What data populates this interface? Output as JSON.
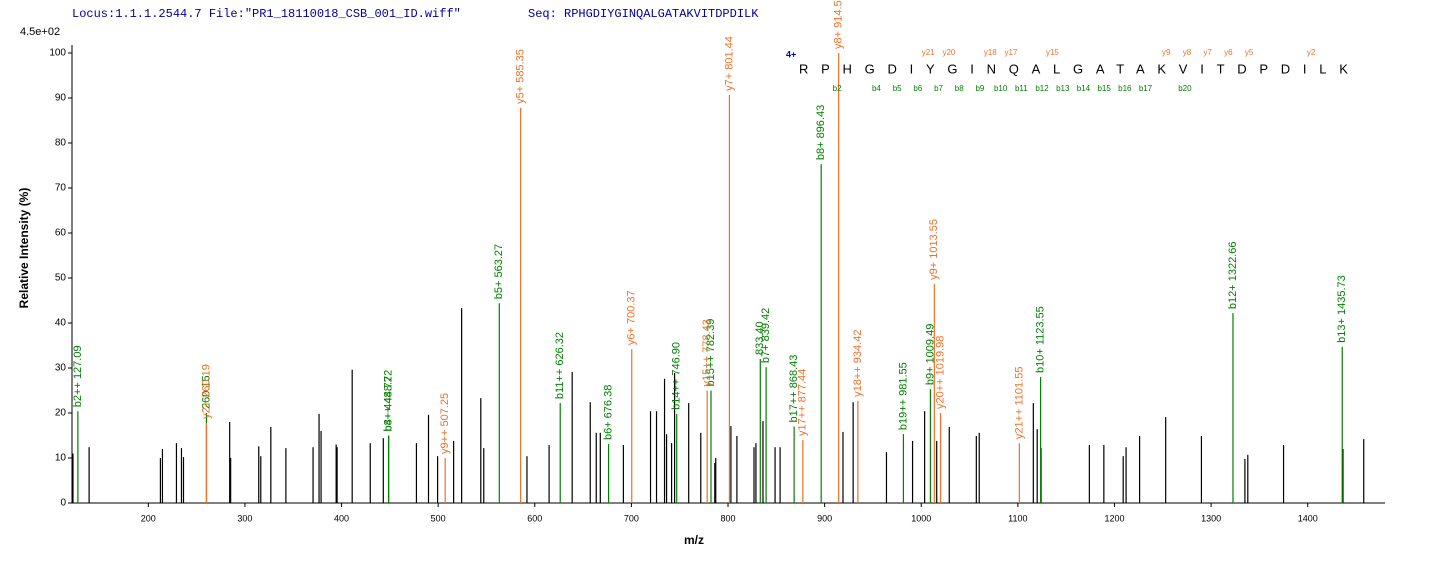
{
  "chart_data": {
    "type": "stem",
    "header_locus": "Locus:1.1.1.2544.7 File:\"PR1_18110018_CSB_001_ID.wiff\"",
    "header_seq": "Seq: RPHGDIYGINQALGATAKVITDPDILK",
    "scale_label": "4.5e+02",
    "xlabel": "m/z",
    "ylabel": "Relative  Intensity (%)",
    "xlim": [
      121,
      1480
    ],
    "ylim": [
      0,
      100
    ],
    "xticks": [
      200,
      300,
      400,
      500,
      600,
      700,
      800,
      900,
      1000,
      1100,
      1200,
      1300,
      1400
    ],
    "yticks": [
      0,
      10,
      20,
      30,
      40,
      50,
      60,
      70,
      80,
      90,
      100
    ],
    "peaks": {
      "color": "#000000",
      "x": [
        122,
        138.7,
        212.5,
        214.6,
        229.1,
        234.3,
        236.4,
        284.2,
        285.2,
        314.3,
        316.4,
        326.8,
        342.4,
        370.5,
        376.7,
        378.8,
        394.4,
        395.4,
        411.0,
        429.7,
        443.2,
        477.5,
        490.0,
        499.4,
        516.0,
        524.3,
        544.1,
        547.2,
        591.9,
        614.8,
        638.7,
        657.4,
        663.6,
        667.8,
        691.7,
        719.8,
        726.0,
        734.3,
        736.4,
        741.6,
        744.7,
        759.3,
        771.8,
        786.3,
        787.3,
        803.0,
        809.2,
        826.9,
        828.9,
        836.2,
        848.7,
        853.9,
        919.0,
        929.5,
        964.0,
        991.0,
        1003.5,
        1016.0,
        1029.0,
        1057.0,
        1060.0,
        1116.0,
        1120.0,
        1124.0,
        1174.0,
        1189.0,
        1209.0,
        1212.0,
        1226.0,
        1253.0,
        1290.0,
        1335.0,
        1338.0,
        1375.0,
        1436.5,
        1458.0
      ],
      "values": [
        11,
        12.4,
        10,
        12,
        13.3,
        12.2,
        10.2,
        18,
        10,
        12.6,
        10.4,
        16.9,
        12.2,
        12.4,
        19.8,
        16,
        13,
        12.4,
        29.6,
        13.3,
        14.4,
        13.3,
        19.6,
        10.4,
        13.8,
        43.3,
        23.3,
        12.2,
        10.4,
        12.9,
        29.1,
        22.4,
        15.6,
        15.6,
        12.9,
        20.4,
        20.4,
        27.6,
        15.3,
        13.3,
        28.9,
        22.2,
        15.6,
        8.9,
        10,
        17.1,
        14.9,
        12.4,
        13.3,
        18.2,
        12.4,
        12.4,
        15.8,
        22.4,
        11.3,
        13.8,
        20.4,
        13.8,
        16.9,
        14.9,
        15.6,
        22.2,
        16.4,
        12.2,
        12.9,
        12.9,
        10.4,
        12.4,
        14.9,
        19.1,
        14.9,
        9.8,
        10.7,
        12.9,
        12,
        14.2
      ]
    },
    "b_ions": {
      "color": "#008000",
      "x": [
        127.09,
        260.15,
        448.72,
        448.72,
        563.27,
        626.32,
        676.38,
        746.9,
        782.39,
        833.4,
        839.42,
        868.43,
        896.43,
        981.55,
        1009.49,
        1123.55,
        1322.66,
        1435.73
      ],
      "values": [
        20.4,
        20,
        15,
        15,
        44.4,
        22.2,
        13.1,
        19.8,
        25,
        32,
        30.2,
        17,
        75.3,
        15.3,
        25.3,
        28,
        42.2,
        34.7
      ],
      "labels": [
        "b2++ 127.09",
        "260.15",
        "b4+ 448.72",
        "b8++ 448.72",
        "b5+ 563.27",
        "b11++ 626.32",
        "b6+ 676.38",
        "b14++ 746.90",
        "b15++ 782.39",
        "833.40",
        "b7+ 839.42",
        "b17++ 868.43",
        "b8+ 896.43",
        "b19++ 981.55",
        "b9+ 1009.49",
        "b10+ 1123.55",
        "b12+ 1322.66",
        "b13+ 1435.73"
      ]
    },
    "y_ions": {
      "color": "#f07028",
      "x": [
        260.19,
        507.25,
        585.35,
        700.37,
        778.43,
        801.44,
        877.44,
        914.51,
        934.42,
        1013.55,
        1019.98,
        1101.55
      ],
      "values": [
        17.8,
        10,
        87.8,
        34.2,
        25,
        90.7,
        14,
        100,
        22.7,
        48.7,
        20,
        13.3
      ],
      "labels": [
        "y2+ 260.19",
        "y9++ 507.25",
        "y5+ 585.35",
        "y6+ 700.37",
        "y15++ 778.43",
        "y7+ 801.44",
        "y17++ 877.44",
        "y8+ 914.51",
        "y18++ 934.42",
        "y9+ 1013.55",
        "y20++ 1019.98",
        "y21++ 1101.55"
      ]
    },
    "charge": "4+",
    "sequence": "RPHGDIYGINQALGATAKVITDPDILK",
    "y_markers": [
      "y21",
      "y20",
      "y18",
      "y17",
      "y15",
      "y9",
      "y8",
      "y7",
      "y6",
      "y5",
      "y2"
    ],
    "b_markers": [
      "b2",
      "b4",
      "b5",
      "b6",
      "b7",
      "b8",
      "b9",
      "b10",
      "b11",
      "b12",
      "b13",
      "b14",
      "b15",
      "b16",
      "b17",
      "b20"
    ]
  }
}
